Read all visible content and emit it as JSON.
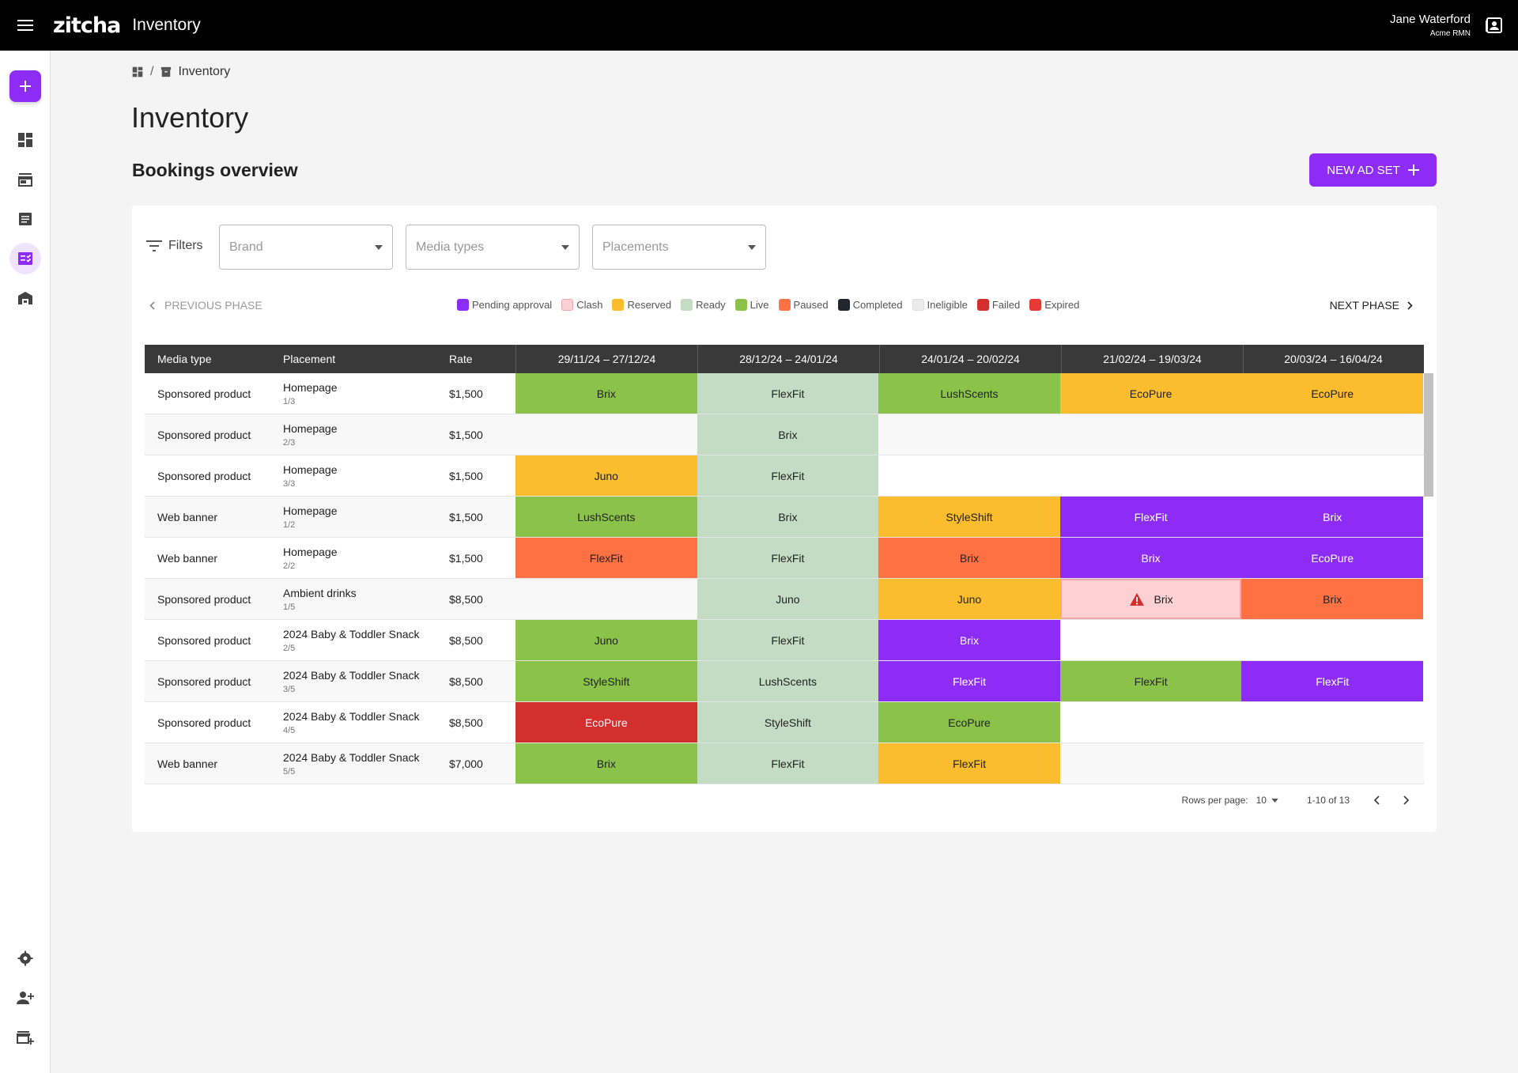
{
  "app": {
    "logo": "zitcha",
    "title": "Inventory"
  },
  "user": {
    "name": "Jane Waterford",
    "org": "Acme RMN"
  },
  "breadcrumb": {
    "current": "Inventory"
  },
  "page": {
    "title": "Inventory",
    "section": "Bookings overview",
    "new_button": "NEW AD SET"
  },
  "filters": {
    "label": "Filters",
    "brand_placeholder": "Brand",
    "media_placeholder": "Media types",
    "placements_placeholder": "Placements"
  },
  "phase": {
    "prev": "PREVIOUS PHASE",
    "next": "NEXT PHASE"
  },
  "legend": [
    {
      "label": "Pending approval",
      "color": "#8c2cf5"
    },
    {
      "label": "Clash",
      "color": "#fdd0d4"
    },
    {
      "label": "Reserved",
      "color": "#fbbd2e"
    },
    {
      "label": "Ready",
      "color": "#c4dcc4"
    },
    {
      "label": "Live",
      "color": "#8bc34a"
    },
    {
      "label": "Paused",
      "color": "#ff7043"
    },
    {
      "label": "Completed",
      "color": "#22252b"
    },
    {
      "label": "Ineligible",
      "color": "#ebebeb"
    },
    {
      "label": "Failed",
      "color": "#d32f2f"
    },
    {
      "label": "Expired",
      "color": "#e53935"
    }
  ],
  "status_colors": {
    "pending": "#8c2cf5",
    "clash": "#fdd0d4",
    "reserved": "#fbbd2e",
    "ready": "#c4dcc4",
    "live": "#8bc34a",
    "paused": "#ff7043",
    "failed": "#d32f2f"
  },
  "table": {
    "headers": {
      "media": "Media type",
      "placement": "Placement",
      "rate": "Rate"
    },
    "periods": [
      "29/11/24 – 27/12/24",
      "28/12/24 – 24/01/24",
      "24/01/24 – 20/02/24",
      "21/02/24 – 19/03/24",
      "20/03/24 – 16/04/24"
    ],
    "rows": [
      {
        "media": "Sponsored product",
        "placement": "Homepage",
        "sub": "1/3",
        "rate": "$1,500",
        "bookings": [
          {
            "brand": "Brix",
            "status": "live",
            "from": 0,
            "to": 1
          },
          {
            "brand": "FlexFit",
            "status": "ready",
            "from": 1,
            "to": 2
          },
          {
            "brand": "LushScents",
            "status": "live",
            "from": 2,
            "to": 3
          },
          {
            "brand": "EcoPure",
            "status": "reserved",
            "from": 3,
            "to": 4
          },
          {
            "brand": "EcoPure",
            "status": "reserved",
            "from": 4,
            "to": 5
          }
        ]
      },
      {
        "media": "Sponsored product",
        "placement": "Homepage",
        "sub": "2/3",
        "rate": "$1,500",
        "bookings": [
          {
            "brand": "Brix",
            "status": "ready",
            "from": 1,
            "to": 2
          }
        ]
      },
      {
        "media": "Sponsored product",
        "placement": "Homepage",
        "sub": "3/3",
        "rate": "$1,500",
        "bookings": [
          {
            "brand": "Juno",
            "status": "reserved",
            "from": 0,
            "to": 1.0
          },
          {
            "brand": "FlexFit",
            "status": "ready",
            "from": 1,
            "to": 2
          }
        ]
      },
      {
        "media": "Web banner",
        "placement": "Homepage",
        "sub": "1/2",
        "rate": "$1,500",
        "bookings": [
          {
            "brand": "LushScents",
            "status": "live",
            "from": 0,
            "to": 1
          },
          {
            "brand": "Brix",
            "status": "ready",
            "from": 1,
            "to": 2
          },
          {
            "brand": "StyleShift",
            "status": "reserved",
            "from": 2,
            "to": 3
          },
          {
            "brand": "FlexFit",
            "status": "pending",
            "from": 3,
            "to": 4
          },
          {
            "brand": "Brix",
            "status": "pending",
            "from": 4,
            "to": 5
          }
        ]
      },
      {
        "media": "Web banner",
        "placement": "Homepage",
        "sub": "2/2",
        "rate": "$1,500",
        "bookings": [
          {
            "brand": "FlexFit",
            "status": "paused",
            "from": 0,
            "to": 1
          },
          {
            "brand": "FlexFit",
            "status": "ready",
            "from": 1,
            "to": 2
          },
          {
            "brand": "Brix",
            "status": "paused",
            "from": 2,
            "to": 3
          },
          {
            "brand": "Brix",
            "status": "pending",
            "from": 3,
            "to": 4
          },
          {
            "brand": "EcoPure",
            "status": "pending",
            "from": 4,
            "to": 5
          }
        ]
      },
      {
        "media": "Sponsored product",
        "placement": "Ambient drinks",
        "sub": "1/5",
        "rate": "$8,500",
        "bookings": [
          {
            "brand": "Juno",
            "status": "ready",
            "from": 1,
            "to": 2
          },
          {
            "brand": "Juno",
            "status": "reserved",
            "from": 2,
            "to": 3
          },
          {
            "brand": "Brix",
            "status": "clash",
            "from": 3,
            "to": 4
          },
          {
            "brand": "Brix",
            "status": "paused",
            "from": 4,
            "to": 5
          }
        ]
      },
      {
        "media": "Sponsored product",
        "placement": "2024 Baby & Toddler Snack",
        "sub": "2/5",
        "rate": "$8,500",
        "bookings": [
          {
            "brand": "Juno",
            "status": "live",
            "from": 0,
            "to": 1
          },
          {
            "brand": "FlexFit",
            "status": "ready",
            "from": 1,
            "to": 2
          },
          {
            "brand": "Brix",
            "status": "pending",
            "from": 2,
            "to": 3
          }
        ]
      },
      {
        "media": "Sponsored product",
        "placement": "2024 Baby & Toddler Snack",
        "sub": "3/5",
        "rate": "$8,500",
        "bookings": [
          {
            "brand": "StyleShift",
            "status": "live",
            "from": 0,
            "to": 1
          },
          {
            "brand": "LushScents",
            "status": "ready",
            "from": 1,
            "to": 2
          },
          {
            "brand": "FlexFit",
            "status": "pending",
            "from": 2,
            "to": 3
          },
          {
            "brand": "FlexFit",
            "status": "live",
            "from": 3,
            "to": 4
          },
          {
            "brand": "FlexFit",
            "status": "pending",
            "from": 4,
            "to": 5
          }
        ]
      },
      {
        "media": "Sponsored product",
        "placement": "2024 Baby & Toddler Snack",
        "sub": "4/5",
        "rate": "$8,500",
        "bookings": [
          {
            "brand": "EcoPure",
            "status": "failed",
            "from": 0,
            "to": 1
          },
          {
            "brand": "StyleShift",
            "status": "ready",
            "from": 1,
            "to": 2
          },
          {
            "brand": "EcoPure",
            "status": "live",
            "from": 2,
            "to": 3
          }
        ]
      },
      {
        "media": "Web banner",
        "placement": "2024 Baby & Toddler Snack",
        "sub": "5/5",
        "rate": "$7,000",
        "bookings": [
          {
            "brand": "Brix",
            "status": "live",
            "from": 0,
            "to": 1
          },
          {
            "brand": "FlexFit",
            "status": "ready",
            "from": 1,
            "to": 2
          },
          {
            "brand": "FlexFit",
            "status": "reserved",
            "from": 2,
            "to": 3
          }
        ]
      }
    ]
  },
  "pagination": {
    "rows_label": "Rows per page:",
    "rows_value": "10",
    "range": "1-10 of 13"
  }
}
